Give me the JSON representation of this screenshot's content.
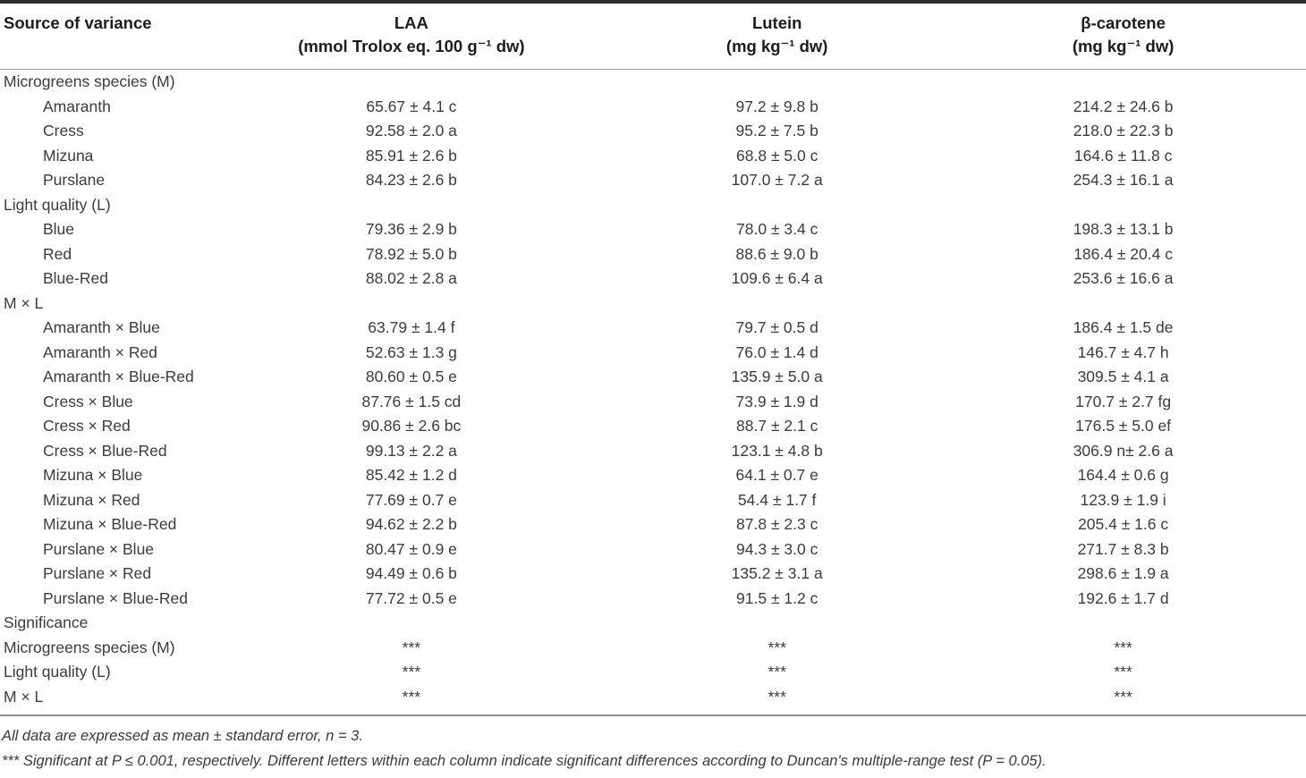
{
  "table": {
    "columns": [
      {
        "label": "Source of variance",
        "unit": ""
      },
      {
        "label": "LAA",
        "unit": "(mmol Trolox eq. 100 g⁻¹ dw)"
      },
      {
        "label": "Lutein",
        "unit": "(mg kg⁻¹ dw)"
      },
      {
        "label": "β-carotene",
        "unit": "(mg kg⁻¹ dw)"
      }
    ],
    "rows": [
      {
        "label": "Microgreens species (M)",
        "indent": false,
        "values": [
          "",
          "",
          ""
        ]
      },
      {
        "label": "Amaranth",
        "indent": true,
        "values": [
          "65.67 ± 4.1 c",
          "97.2 ± 9.8 b",
          "214.2 ± 24.6 b"
        ]
      },
      {
        "label": "Cress",
        "indent": true,
        "values": [
          "92.58 ± 2.0 a",
          "95.2 ± 7.5 b",
          "218.0 ± 22.3 b"
        ]
      },
      {
        "label": "Mizuna",
        "indent": true,
        "values": [
          "85.91 ± 2.6 b",
          "68.8 ± 5.0 c",
          "164.6 ± 11.8 c"
        ]
      },
      {
        "label": "Purslane",
        "indent": true,
        "values": [
          "84.23 ± 2.6 b",
          "107.0 ± 7.2 a",
          "254.3 ± 16.1 a"
        ]
      },
      {
        "label": "Light quality (L)",
        "indent": false,
        "values": [
          "",
          "",
          ""
        ]
      },
      {
        "label": "Blue",
        "indent": true,
        "values": [
          "79.36 ± 2.9 b",
          "78.0 ± 3.4 c",
          "198.3 ± 13.1 b"
        ]
      },
      {
        "label": "Red",
        "indent": true,
        "values": [
          "78.92 ± 5.0 b",
          "88.6 ± 9.0 b",
          "186.4 ± 20.4 c"
        ]
      },
      {
        "label": "Blue-Red",
        "indent": true,
        "values": [
          "88.02 ± 2.8 a",
          "109.6 ± 6.4 a",
          "253.6 ± 16.6 a"
        ]
      },
      {
        "label": "M × L",
        "indent": false,
        "values": [
          "",
          "",
          ""
        ]
      },
      {
        "label": "Amaranth × Blue",
        "indent": true,
        "values": [
          "63.79 ± 1.4 f",
          "79.7 ± 0.5 d",
          "186.4 ± 1.5 de"
        ]
      },
      {
        "label": "Amaranth × Red",
        "indent": true,
        "values": [
          "52.63 ± 1.3 g",
          "76.0 ± 1.4 d",
          "146.7 ± 4.7 h"
        ]
      },
      {
        "label": "Amaranth × Blue-Red",
        "indent": true,
        "values": [
          "80.60 ± 0.5 e",
          "135.9 ± 5.0 a",
          "309.5 ± 4.1 a"
        ]
      },
      {
        "label": "Cress × Blue",
        "indent": true,
        "values": [
          "87.76 ± 1.5 cd",
          "73.9 ± 1.9 d",
          "170.7 ± 2.7 fg"
        ]
      },
      {
        "label": "Cress × Red",
        "indent": true,
        "values": [
          "90.86 ± 2.6 bc",
          "88.7 ± 2.1 c",
          "176.5 ± 5.0 ef"
        ]
      },
      {
        "label": "Cress × Blue-Red",
        "indent": true,
        "values": [
          "99.13 ± 2.2 a",
          "123.1 ± 4.8 b",
          "306.9 n± 2.6 a"
        ]
      },
      {
        "label": "Mizuna × Blue",
        "indent": true,
        "values": [
          "85.42 ± 1.2 d",
          "64.1 ± 0.7 e",
          "164.4 ± 0.6 g"
        ]
      },
      {
        "label": "Mizuna × Red",
        "indent": true,
        "values": [
          "77.69 ± 0.7 e",
          "54.4 ± 1.7 f",
          "123.9 ± 1.9 i"
        ]
      },
      {
        "label": "Mizuna × Blue-Red",
        "indent": true,
        "values": [
          "94.62 ± 2.2 b",
          "87.8 ± 2.3 c",
          "205.4 ± 1.6 c"
        ]
      },
      {
        "label": "Purslane × Blue",
        "indent": true,
        "values": [
          "80.47 ± 0.9 e",
          "94.3 ± 3.0 c",
          "271.7 ± 8.3 b"
        ]
      },
      {
        "label": "Purslane × Red",
        "indent": true,
        "values": [
          "94.49 ± 0.6 b",
          "135.2 ± 3.1 a",
          "298.6 ± 1.9 a"
        ]
      },
      {
        "label": "Purslane × Blue-Red",
        "indent": true,
        "values": [
          "77.72 ± 0.5 e",
          "91.5 ± 1.2 c",
          "192.6 ± 1.7 d"
        ]
      },
      {
        "label": "Significance",
        "indent": false,
        "values": [
          "",
          "",
          ""
        ]
      },
      {
        "label": "Microgreens species (M)",
        "indent": false,
        "values": [
          "***",
          "***",
          "***"
        ]
      },
      {
        "label": "Light quality (L)",
        "indent": false,
        "values": [
          "***",
          "***",
          "***"
        ]
      },
      {
        "label": "M × L",
        "indent": false,
        "values": [
          "***",
          "***",
          "***"
        ]
      }
    ],
    "footnotes": [
      "All data are expressed as mean ± standard error, n = 3.",
      "*** Significant at P ≤ 0.001, respectively. Different letters within each column indicate significant differences according to Duncan's multiple-range test (P = 0.05)."
    ]
  }
}
